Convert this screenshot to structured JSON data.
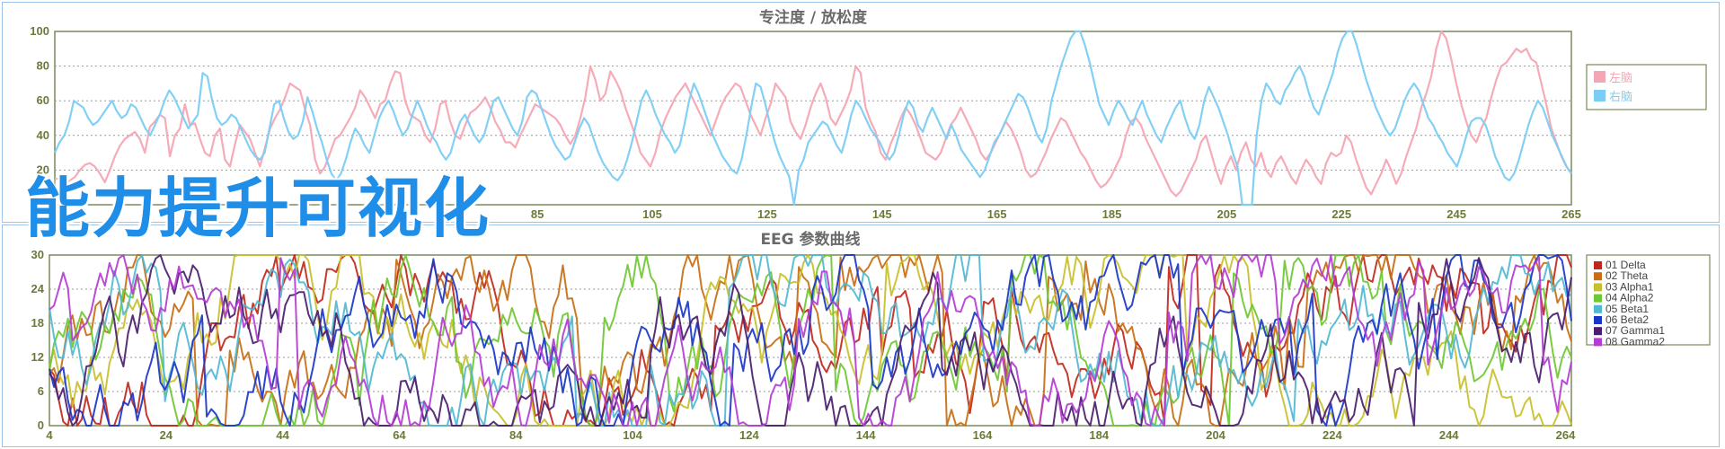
{
  "overlay_title": "能力提升可视化",
  "chart_data": [
    {
      "type": "line",
      "title": "专注度 / 放松度",
      "xlabel": "",
      "ylabel": "",
      "ylim": [
        0,
        100
      ],
      "yticks": [
        20,
        40,
        60,
        80,
        100
      ],
      "xticks": [
        85,
        105,
        125,
        145,
        165,
        185,
        205,
        225,
        245,
        265
      ],
      "xlim": [
        1,
        265
      ],
      "grid": true,
      "legend_position": "right",
      "series": [
        {
          "name": "左脑",
          "color": "#f4a6b4",
          "values": [
            15,
            15,
            12,
            14,
            16,
            20,
            23,
            24,
            22,
            18,
            13,
            20,
            28,
            34,
            38,
            40,
            42,
            38,
            30,
            45,
            48,
            52,
            50,
            28,
            40,
            44,
            58,
            46,
            47,
            38,
            30,
            28,
            40,
            44,
            26,
            22,
            35,
            46,
            42,
            38,
            30,
            22,
            33,
            44,
            50,
            55,
            62,
            70,
            68,
            66,
            55,
            46,
            26,
            18,
            22,
            30,
            38,
            40,
            45,
            50,
            56,
            66,
            62,
            56,
            50,
            58,
            60,
            70,
            77,
            76,
            60,
            52,
            50,
            48,
            40,
            36,
            44,
            58,
            60,
            48,
            40,
            38,
            46,
            53,
            55,
            58,
            62,
            56,
            48,
            43,
            36,
            36,
            33,
            40,
            46,
            52,
            58,
            56,
            54,
            52,
            50,
            46,
            40,
            35,
            40,
            50,
            62,
            80,
            72,
            60,
            64,
            77,
            72,
            66,
            56,
            48,
            40,
            30,
            26,
            22,
            30,
            42,
            50,
            56,
            62,
            66,
            70,
            64,
            58,
            52,
            46,
            40,
            48,
            56,
            62,
            66,
            70,
            68,
            60,
            52,
            46,
            40,
            50,
            58,
            70,
            66,
            62,
            48,
            42,
            38,
            46,
            56,
            64,
            70,
            62,
            50,
            46,
            52,
            58,
            66,
            80,
            76,
            56,
            48,
            42,
            30,
            26,
            35,
            42,
            50,
            56,
            52,
            46,
            38,
            30,
            28,
            26,
            30,
            38,
            46,
            50,
            56,
            50,
            44,
            38,
            30,
            26,
            30,
            36,
            42,
            48,
            44,
            38,
            30,
            20,
            16,
            18,
            24,
            30,
            38,
            44,
            50,
            48,
            42,
            36,
            30,
            26,
            20,
            14,
            10,
            12,
            16,
            22,
            28,
            40,
            48,
            50,
            46,
            38,
            32,
            26,
            20,
            14,
            8,
            5,
            8,
            14,
            20,
            26,
            36,
            40,
            30,
            20,
            12,
            22,
            28,
            20,
            30,
            36,
            26,
            22,
            30,
            20,
            16,
            24,
            28,
            22,
            16,
            12,
            20,
            26,
            22,
            16,
            12,
            24,
            30,
            28,
            30,
            40,
            36,
            26,
            18,
            10,
            6,
            12,
            18,
            26,
            20,
            12,
            18,
            28,
            36,
            44,
            56,
            64,
            74,
            90,
            100,
            96,
            84,
            70,
            58,
            48,
            40,
            36,
            44,
            50,
            62,
            72,
            80,
            82,
            86,
            90,
            88,
            90,
            84,
            82,
            70,
            58,
            44,
            36,
            28,
            22,
            18
          ]
        },
        {
          "name": "右脑",
          "color": "#7ccdf4",
          "values": [
            30,
            36,
            40,
            48,
            60,
            58,
            56,
            50,
            46,
            48,
            52,
            56,
            60,
            54,
            50,
            52,
            58,
            56,
            50,
            44,
            40,
            46,
            52,
            60,
            66,
            62,
            56,
            50,
            44,
            48,
            52,
            76,
            74,
            60,
            50,
            46,
            48,
            52,
            50,
            44,
            38,
            32,
            28,
            26,
            30,
            44,
            58,
            60,
            50,
            42,
            38,
            40,
            48,
            62,
            54,
            44,
            36,
            26,
            18,
            14,
            18,
            26,
            36,
            44,
            40,
            34,
            30,
            40,
            50,
            56,
            60,
            54,
            46,
            40,
            44,
            52,
            60,
            54,
            46,
            40,
            36,
            30,
            26,
            30,
            40,
            48,
            52,
            46,
            40,
            36,
            40,
            50,
            60,
            62,
            56,
            50,
            44,
            40,
            48,
            62,
            66,
            64,
            56,
            48,
            40,
            34,
            30,
            26,
            28,
            36,
            44,
            50,
            46,
            38,
            30,
            24,
            20,
            16,
            14,
            18,
            26,
            36,
            48,
            60,
            66,
            60,
            52,
            46,
            40,
            36,
            30,
            34,
            46,
            60,
            70,
            64,
            56,
            48,
            40,
            34,
            28,
            24,
            20,
            18,
            26,
            40,
            56,
            70,
            68,
            58,
            46,
            36,
            28,
            22,
            16,
            0,
            20,
            26,
            36,
            40,
            44,
            48,
            46,
            40,
            34,
            30,
            40,
            52,
            60,
            56,
            50,
            44,
            40,
            36,
            30,
            26,
            30,
            40,
            52,
            60,
            56,
            46,
            42,
            50,
            56,
            50,
            44,
            38,
            46,
            40,
            32,
            28,
            24,
            20,
            16,
            20,
            28,
            36,
            40,
            46,
            52,
            58,
            64,
            62,
            56,
            48,
            40,
            36,
            44,
            60,
            70,
            80,
            88,
            96,
            100,
            100,
            92,
            82,
            70,
            58,
            52,
            46,
            54,
            60,
            56,
            50,
            46,
            54,
            60,
            52,
            46,
            40,
            36,
            44,
            50,
            56,
            60,
            50,
            42,
            38,
            46,
            60,
            68,
            62,
            56,
            48,
            40,
            30,
            22,
            0,
            0,
            0,
            40,
            60,
            70,
            66,
            60,
            58,
            66,
            70,
            76,
            80,
            74,
            64,
            56,
            52,
            60,
            68,
            76,
            88,
            96,
            100,
            100,
            92,
            82,
            72,
            64,
            56,
            50,
            44,
            40,
            44,
            52,
            60,
            66,
            70,
            66,
            58,
            50,
            46,
            40,
            36,
            30,
            26,
            22,
            30,
            40,
            48,
            50,
            50,
            46,
            38,
            28,
            22,
            16,
            14,
            18,
            26,
            36,
            46,
            54,
            60,
            56,
            48,
            40,
            34,
            28,
            22,
            18
          ]
        }
      ]
    },
    {
      "type": "line",
      "title": "EEG 参数曲线",
      "xlabel": "",
      "ylabel": "",
      "ylim": [
        0,
        30
      ],
      "yticks": [
        0,
        6,
        12,
        18,
        24,
        30
      ],
      "xticks": [
        4,
        24,
        44,
        64,
        84,
        104,
        124,
        144,
        164,
        184,
        204,
        224,
        244,
        264
      ],
      "xlim": [
        4,
        265
      ],
      "grid": true,
      "legend_position": "right",
      "series": [
        {
          "name": "01 Delta",
          "color": "#c0281c"
        },
        {
          "name": "02 Theta",
          "color": "#c86e14"
        },
        {
          "name": "03 Alpha1",
          "color": "#c8c02a"
        },
        {
          "name": "04 Alpha2",
          "color": "#6ec832"
        },
        {
          "name": "05 Beta1",
          "color": "#50b8d2"
        },
        {
          "name": "06 Beta2",
          "color": "#1a36c8"
        },
        {
          "name": "07 Gamma1",
          "color": "#4a1e6e"
        },
        {
          "name": "08 Gamma2",
          "color": "#b43cd2"
        }
      ]
    }
  ]
}
